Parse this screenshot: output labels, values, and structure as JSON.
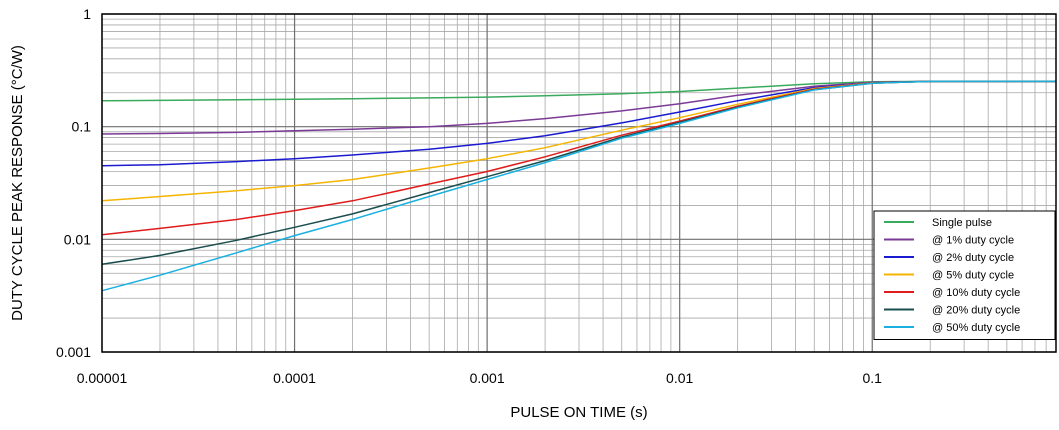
{
  "chart_data": {
    "type": "line",
    "xlabel": "PULSE ON TIME (s)",
    "ylabel": "DUTY CYCLE PEAK RESPONSE (°C/W)",
    "xscale": "log",
    "yscale": "log",
    "xlim": [
      1e-05,
      0.9
    ],
    "ylim": [
      0.001,
      1
    ],
    "xticks": [
      {
        "value": 1e-05,
        "label": "0.00001"
      },
      {
        "value": 0.0001,
        "label": "0.0001"
      },
      {
        "value": 0.001,
        "label": "0.001"
      },
      {
        "value": 0.01,
        "label": "0.01"
      },
      {
        "value": 0.1,
        "label": "0.1"
      }
    ],
    "yticks": [
      {
        "value": 1,
        "label": "1"
      },
      {
        "value": 0.1,
        "label": "0.1"
      },
      {
        "value": 0.01,
        "label": "0.01"
      },
      {
        "value": 0.001,
        "label": "0.001"
      }
    ],
    "grid": true,
    "legend_position": "bottom-right",
    "x": [
      1e-05,
      2e-05,
      5e-05,
      0.0001,
      0.0002,
      0.0005,
      0.001,
      0.002,
      0.005,
      0.01,
      0.02,
      0.05,
      0.1,
      0.2,
      0.5,
      0.9
    ],
    "series": [
      {
        "name": "Single pulse",
        "color": "#3aaa5c",
        "values": [
          0.17,
          0.171,
          0.173,
          0.175,
          0.177,
          0.18,
          0.183,
          0.188,
          0.196,
          0.205,
          0.22,
          0.24,
          0.25,
          0.252,
          0.252,
          0.252
        ]
      },
      {
        "name": "@ 1% duty cycle",
        "color": "#7b3a96",
        "values": [
          0.086,
          0.087,
          0.089,
          0.092,
          0.095,
          0.1,
          0.107,
          0.118,
          0.138,
          0.16,
          0.19,
          0.228,
          0.248,
          0.252,
          0.252,
          0.252
        ]
      },
      {
        "name": "@ 2% duty cycle",
        "color": "#1a1ad0",
        "values": [
          0.045,
          0.046,
          0.049,
          0.052,
          0.056,
          0.063,
          0.071,
          0.083,
          0.108,
          0.135,
          0.17,
          0.222,
          0.246,
          0.252,
          0.252,
          0.252
        ]
      },
      {
        "name": "@ 5% duty cycle",
        "color": "#f5b400",
        "values": [
          0.022,
          0.024,
          0.027,
          0.03,
          0.034,
          0.043,
          0.052,
          0.065,
          0.093,
          0.12,
          0.158,
          0.218,
          0.245,
          0.252,
          0.252,
          0.252
        ]
      },
      {
        "name": "@ 10% duty cycle",
        "color": "#e01b1b",
        "values": [
          0.011,
          0.0125,
          0.015,
          0.018,
          0.022,
          0.031,
          0.04,
          0.054,
          0.084,
          0.112,
          0.152,
          0.215,
          0.244,
          0.252,
          0.252,
          0.252
        ]
      },
      {
        "name": "@ 20% duty cycle",
        "color": "#1a4d4d",
        "values": [
          0.006,
          0.0072,
          0.0098,
          0.0128,
          0.0168,
          0.026,
          0.036,
          0.05,
          0.081,
          0.109,
          0.149,
          0.213,
          0.243,
          0.252,
          0.252,
          0.252
        ]
      },
      {
        "name": "@ 50% duty cycle",
        "color": "#1ab0e0",
        "values": [
          0.0035,
          0.0048,
          0.0076,
          0.0108,
          0.015,
          0.024,
          0.034,
          0.048,
          0.079,
          0.107,
          0.147,
          0.212,
          0.243,
          0.252,
          0.252,
          0.252
        ]
      }
    ]
  }
}
